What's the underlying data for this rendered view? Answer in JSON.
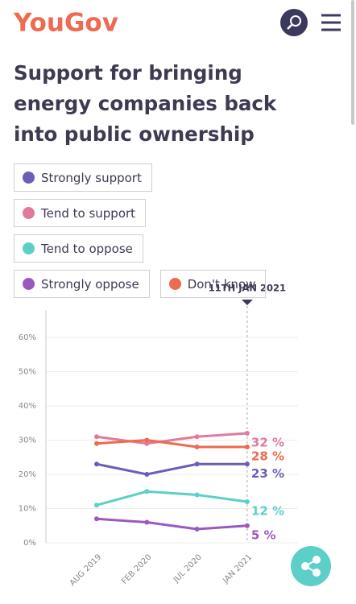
{
  "header": {
    "logo": "YouGov"
  },
  "chart_data": {
    "type": "line",
    "title": "Support for bringing energy companies back into public ownership",
    "annotation": "11TH JAN 2021",
    "categories": [
      "AUG 2019",
      "FEB 2020",
      "JUL 2020",
      "JAN 2021"
    ],
    "series": [
      {
        "name": "Strongly support",
        "color": "#6a5fb5",
        "values": [
          23,
          20,
          23,
          23
        ],
        "value_labels": [
          null,
          null,
          null,
          "23 %"
        ]
      },
      {
        "name": "Tend to support",
        "color": "#e07b9b",
        "values": [
          31,
          29,
          31,
          32
        ],
        "value_labels": [
          null,
          null,
          null,
          "32 %"
        ]
      },
      {
        "name": "Tend to oppose",
        "color": "#5dcfc9",
        "values": [
          11,
          15,
          14,
          12
        ],
        "value_labels": [
          null,
          null,
          null,
          "12 %"
        ]
      },
      {
        "name": "Strongly oppose",
        "color": "#9b59c0",
        "values": [
          7,
          6,
          4,
          5
        ],
        "value_labels": [
          null,
          null,
          null,
          "5 %"
        ]
      },
      {
        "name": "Don't know",
        "color": "#ee6a50",
        "values": [
          29,
          30,
          28,
          28
        ],
        "value_labels": [
          null,
          null,
          null,
          "28 %"
        ]
      }
    ],
    "ylim": [
      0,
      68
    ],
    "yticks": [
      {
        "value": 0,
        "label": "0%"
      },
      {
        "value": 10,
        "label": "10%"
      },
      {
        "value": 20,
        "label": "20%"
      },
      {
        "value": 30,
        "label": "30%"
      },
      {
        "value": 40,
        "label": "40%"
      },
      {
        "value": 50,
        "label": "50%"
      },
      {
        "value": 60,
        "label": "60%"
      }
    ],
    "grid": true
  }
}
